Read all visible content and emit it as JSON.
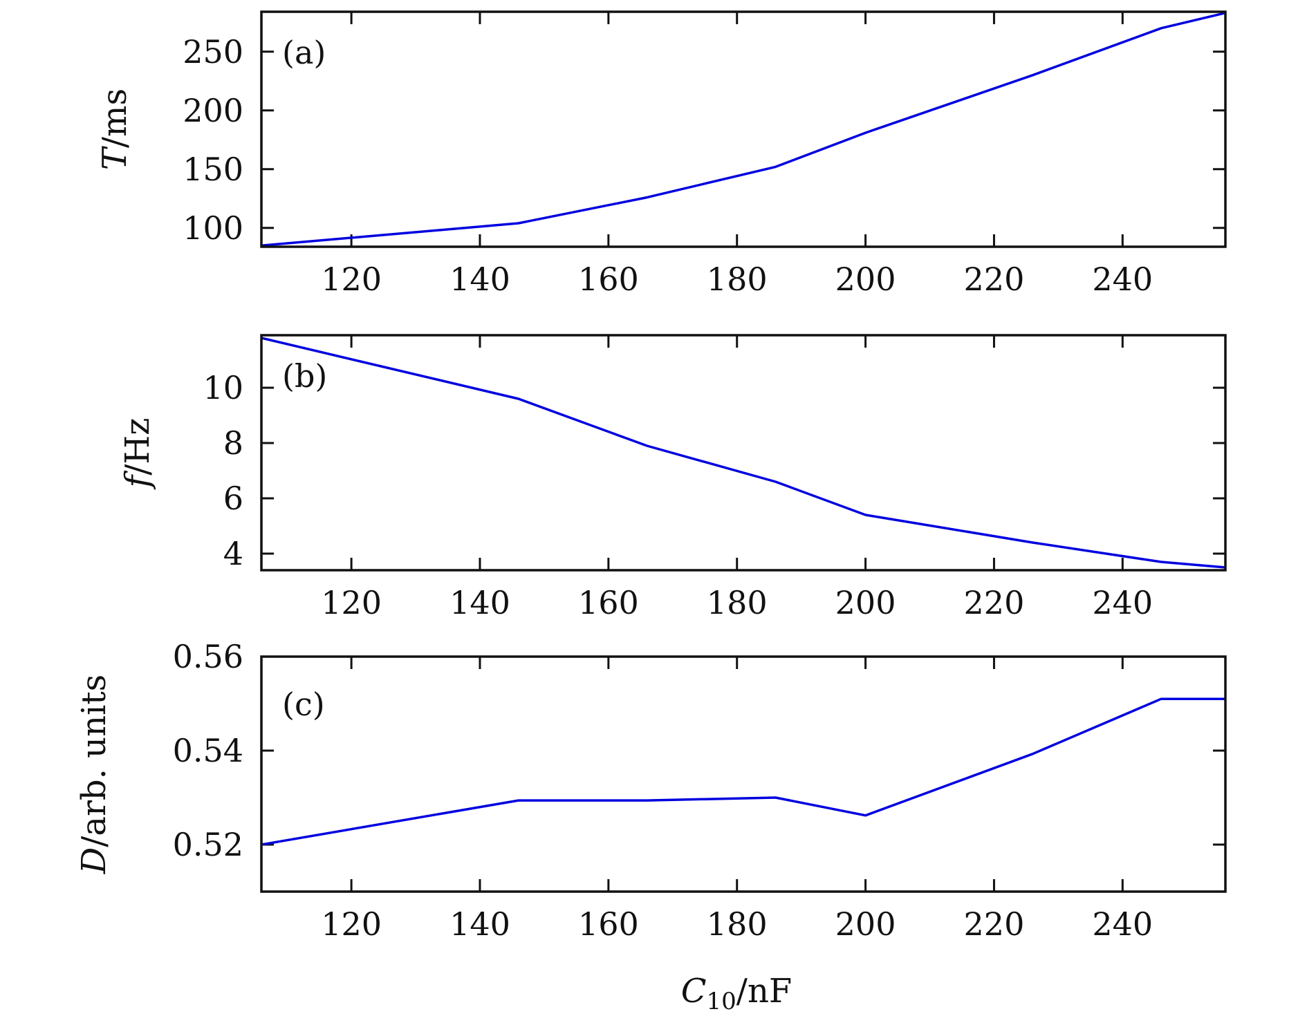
{
  "chart_data": [
    {
      "type": "line",
      "panel_label": "(a)",
      "ylabel": "T/ms",
      "ylabel_symbol": "T",
      "ylabel_unit": "/ms",
      "xlim": [
        106,
        256
      ],
      "ylim": [
        84,
        284
      ],
      "xticks": [
        120,
        140,
        160,
        180,
        200,
        220,
        240
      ],
      "yticks": [
        100,
        150,
        200,
        250
      ],
      "color": "#0000e0",
      "x": [
        106,
        146,
        166,
        186,
        200,
        226,
        246,
        256
      ],
      "y": [
        85,
        104,
        126,
        152,
        181,
        230,
        270,
        283
      ]
    },
    {
      "type": "line",
      "panel_label": "(b)",
      "ylabel": "f/Hz",
      "ylabel_symbol": "f",
      "ylabel_unit": "/Hz",
      "xlim": [
        106,
        256
      ],
      "ylim": [
        3.4,
        11.9
      ],
      "xticks": [
        120,
        140,
        160,
        180,
        200,
        220,
        240
      ],
      "yticks": [
        4,
        6,
        8,
        10
      ],
      "color": "#0000e0",
      "x": [
        106,
        146,
        166,
        186,
        200,
        226,
        246,
        256
      ],
      "y": [
        11.8,
        9.6,
        7.9,
        6.6,
        5.4,
        4.4,
        3.7,
        3.5
      ]
    },
    {
      "type": "line",
      "panel_label": "(c)",
      "ylabel": "D/arb. units",
      "ylabel_symbol": "D",
      "ylabel_unit": "/arb. units",
      "xlim": [
        106,
        256
      ],
      "ylim": [
        0.51,
        0.56
      ],
      "xticks": [
        120,
        140,
        160,
        180,
        200,
        220,
        240
      ],
      "yticks": [
        0.52,
        0.54,
        0.56
      ],
      "ytick_labels": [
        "0.52",
        "0.54",
        "0.56"
      ],
      "color": "#0000e0",
      "x": [
        106,
        146,
        166,
        186,
        200,
        226,
        246,
        256
      ],
      "y": [
        0.52,
        0.5294,
        0.5294,
        0.53,
        0.5262,
        0.5393,
        0.551,
        0.551
      ]
    }
  ],
  "xlabel": "C10/nF",
  "xlabel_symbol": "C",
  "xlabel_subscript": "10",
  "xlabel_unit": "/nF"
}
